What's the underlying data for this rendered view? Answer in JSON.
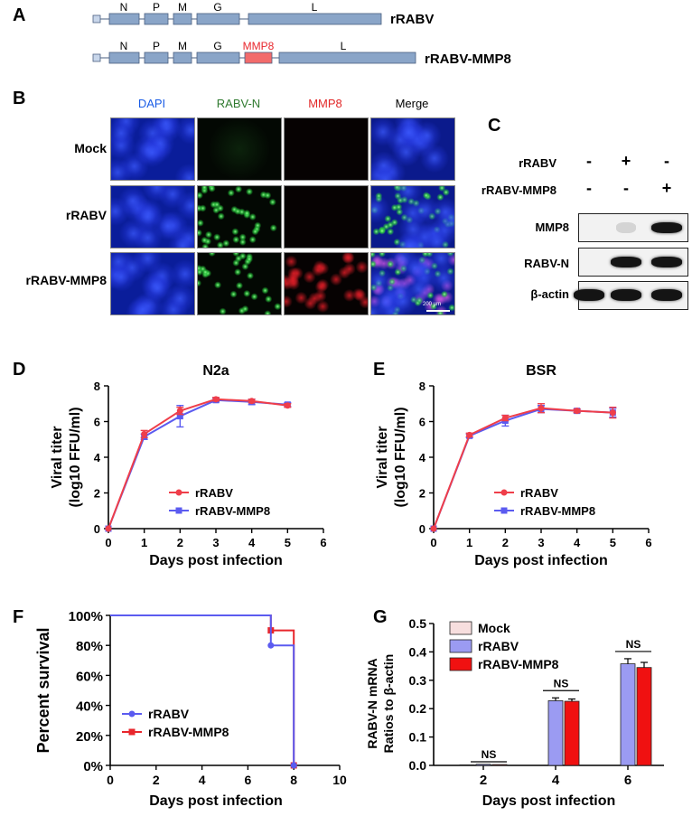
{
  "panels": {
    "A": "A",
    "B": "B",
    "C": "C",
    "D": "D",
    "E": "E",
    "F": "F",
    "G": "G"
  },
  "panel_a": {
    "constructs": [
      {
        "name": "rRABV",
        "genes": [
          "N",
          "P",
          "M",
          "G",
          "L"
        ]
      },
      {
        "name": "rRABV-MMP8",
        "genes": [
          "N",
          "P",
          "M",
          "G",
          "MMP8",
          "L"
        ]
      }
    ],
    "colors": {
      "gene": "#8aa5c8",
      "insert": "#f26b6b",
      "insert_text": "#e8262c"
    }
  },
  "panel_b": {
    "columns": [
      {
        "label": "DAPI",
        "color": "#1a5ce6"
      },
      {
        "label": "RABV-N",
        "color": "#2f7a2f"
      },
      {
        "label": "MMP8",
        "color": "#e22727"
      },
      {
        "label": "Merge",
        "color": "#000000"
      }
    ],
    "rows": [
      "Mock",
      "rRABV",
      "rRABV-MMP8"
    ],
    "scale_bar": "200 μm"
  },
  "panel_c": {
    "conditions": [
      {
        "label": "rRABV",
        "signs": [
          "-",
          "+",
          "-"
        ]
      },
      {
        "label": "rRABV-MMP8",
        "signs": [
          "-",
          "-",
          "+"
        ]
      }
    ],
    "blots": [
      {
        "label": "MMP8",
        "levels": [
          0,
          0.05,
          1
        ]
      },
      {
        "label": "RABV-N",
        "levels": [
          0,
          1,
          1
        ]
      },
      {
        "label": "β-actin",
        "levels": [
          1,
          1,
          1
        ]
      }
    ]
  },
  "chart_data": [
    {
      "panel": "D",
      "type": "line",
      "title": "N2a",
      "xlabel": "Days post infection",
      "ylabel_line1": "Viral titer",
      "ylabel_line2": "(log10 FFU/ml)",
      "xlim": [
        0,
        6
      ],
      "ylim": [
        0,
        8
      ],
      "xticks": [
        0,
        1,
        2,
        3,
        4,
        5,
        6
      ],
      "yticks": [
        0,
        2,
        4,
        6,
        8
      ],
      "series": [
        {
          "name": "rRABV",
          "color": "#ef3e4a",
          "marker": "circle",
          "x": [
            0,
            1,
            2,
            3,
            4,
            5
          ],
          "y": [
            0,
            5.3,
            6.6,
            7.25,
            7.15,
            6.9
          ],
          "err": [
            0,
            0.2,
            0.2,
            0.1,
            0.1,
            0.1
          ]
        },
        {
          "name": "rRABV-MMP8",
          "color": "#5b5bf0",
          "marker": "square",
          "x": [
            0,
            1,
            2,
            3,
            4,
            5
          ],
          "y": [
            0,
            5.15,
            6.3,
            7.2,
            7.1,
            6.95
          ],
          "err": [
            0,
            0.15,
            0.6,
            0.1,
            0.15,
            0.1
          ]
        }
      ]
    },
    {
      "panel": "E",
      "type": "line",
      "title": "BSR",
      "xlabel": "Days post infection",
      "ylabel_line1": "Viral titer",
      "ylabel_line2": "(log10 FFU/ml)",
      "xlim": [
        0,
        6
      ],
      "ylim": [
        0,
        8
      ],
      "xticks": [
        0,
        1,
        2,
        3,
        4,
        5,
        6
      ],
      "yticks": [
        0,
        2,
        4,
        6,
        8
      ],
      "series": [
        {
          "name": "rRABV",
          "color": "#ef3e4a",
          "marker": "circle",
          "x": [
            0,
            1,
            2,
            3,
            4,
            5
          ],
          "y": [
            0,
            5.25,
            6.2,
            6.75,
            6.6,
            6.5
          ],
          "err": [
            0,
            0.1,
            0.15,
            0.25,
            0.1,
            0.3
          ]
        },
        {
          "name": "rRABV-MMP8",
          "color": "#5b5bf0",
          "marker": "square",
          "x": [
            0,
            1,
            2,
            3,
            4,
            5
          ],
          "y": [
            0,
            5.2,
            6.05,
            6.7,
            6.6,
            6.5
          ],
          "err": [
            0,
            0.1,
            0.3,
            0.2,
            0.1,
            0.25
          ]
        }
      ]
    },
    {
      "panel": "F",
      "type": "line",
      "xlabel": "Days post infection",
      "ylabel": "Percent survival",
      "xlim": [
        0,
        10
      ],
      "ylim": [
        0,
        100
      ],
      "xticks": [
        0,
        2,
        4,
        6,
        8,
        10
      ],
      "yticks": [
        "0%",
        "20%",
        "40%",
        "60%",
        "80%",
        "100%"
      ],
      "series": [
        {
          "name": "rRABV",
          "color": "#5b5bf0",
          "marker": "circle",
          "x": [
            0,
            7,
            7,
            8,
            8
          ],
          "y": [
            100,
            100,
            80,
            80,
            0
          ]
        },
        {
          "name": "rRABV-MMP8",
          "color": "#e8262c",
          "marker": "square",
          "x": [
            0,
            7,
            7,
            8,
            8
          ],
          "y": [
            100,
            100,
            90,
            90,
            0
          ]
        }
      ]
    },
    {
      "panel": "G",
      "type": "bar",
      "xlabel": "Days post infection",
      "ylabel_line1": "RABV-N mRNA",
      "ylabel_line2": "Ratios to β-actin",
      "ylim": [
        0,
        0.5
      ],
      "yticks": [
        "0.0",
        "0.1",
        "0.2",
        "0.3",
        "0.4",
        "0.5"
      ],
      "categories": [
        "2",
        "4",
        "6"
      ],
      "series": [
        {
          "name": "Mock",
          "color": "#f7dede",
          "values": [
            0.002,
            0,
            0
          ],
          "err": [
            0,
            0,
            0
          ]
        },
        {
          "name": "rRABV",
          "color": "#9b9bf2",
          "values": [
            0.004,
            0.228,
            0.358
          ],
          "err": [
            0.001,
            0.01,
            0.018
          ]
        },
        {
          "name": "rRABV-MMP8",
          "color": "#f01111",
          "values": [
            0.003,
            0.226,
            0.345
          ],
          "err": [
            0.001,
            0.008,
            0.018
          ]
        }
      ],
      "annotations": [
        "NS",
        "NS",
        "NS"
      ]
    }
  ]
}
